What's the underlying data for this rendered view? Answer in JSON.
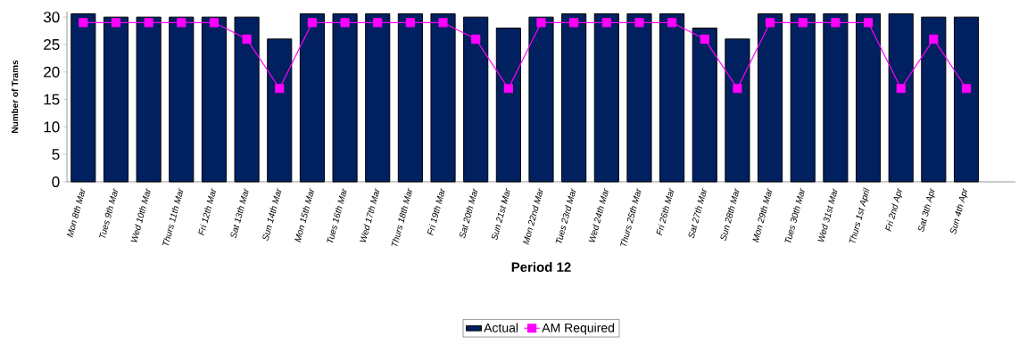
{
  "chart_data": {
    "type": "bar",
    "xlabel": "Period 12",
    "ylabel": "Number of Trams",
    "categories": [
      "Mon 8th Mar",
      "Tues 9th Mar",
      "Wed 10th Mar",
      "Thurs 11th Mar",
      "Fri 12th Mar",
      "Sat 13th Mar",
      "Sun 14th Mar",
      "Mon 15th Mar",
      "Tues 16th Mar",
      "Wed 17th Mar",
      "Thurs 18th Mar",
      "Fri 19th Mar",
      "Sat 20th Mar",
      "Sun 21st Mar",
      "Mon 22nd Mar",
      "Tues 23rd Mar",
      "Wed 24th Mar",
      "Thurs 25th Mar",
      "Fri 26th Mar",
      "Sat 27th Mar",
      "Sun 28th Mar",
      "Mon 29th Mar",
      "Tues 30th Mar",
      "Wed 31st Mar",
      "Thurs 1st April",
      "Fri 2nd Apr",
      "Sat 3th Apr",
      "Sun 4th Apr",
      null
    ],
    "series": [
      {
        "name": "Actual",
        "color": "#002060",
        "values": [
          30.6,
          30,
          30,
          30,
          30,
          30,
          26,
          30.6,
          30.6,
          30.6,
          30.6,
          30.6,
          30,
          28,
          30,
          30.6,
          30.6,
          30.6,
          30.6,
          28,
          26,
          30.6,
          30.6,
          30.6,
          30.6,
          30.6,
          30,
          30,
          null
        ]
      },
      {
        "name": "AM Required",
        "type": "line",
        "color": "#ff00ff",
        "marker": "square",
        "values": [
          29,
          29,
          29,
          29,
          29,
          26,
          17,
          29,
          29,
          29,
          29,
          29,
          26,
          17,
          29,
          29,
          29,
          29,
          29,
          26,
          17,
          29,
          29,
          29,
          29,
          17,
          26,
          17,
          null
        ]
      }
    ],
    "ylim": [
      0,
      31
    ],
    "yticks": [
      0,
      5,
      10,
      15,
      20,
      25,
      30
    ],
    "grid": false,
    "legend": "bottom"
  }
}
